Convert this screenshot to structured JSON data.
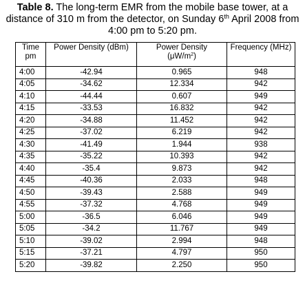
{
  "caption": {
    "label": "Table 8.",
    "line1": "The long-term EMR from the mobile base tower, at a",
    "line2_pre": "distance of 310 m from the detector, on Sunday 6",
    "line2_sup": "th",
    "line2_post": " April 2008 from",
    "line3": "4:00 pm to 5:20 pm."
  },
  "table": {
    "headers": {
      "time_l1": "Time",
      "time_l2": "pm",
      "dbm": "Power Density (dBm)",
      "uw_l1": "Power Density",
      "uw_l2_pre": "(μW/m",
      "uw_l2_sup": "2",
      "uw_l2_post": ")",
      "freq": "Frequency (MHz)"
    },
    "rows": [
      [
        "4:00",
        "-42.94",
        "0.965",
        "948"
      ],
      [
        "4:05",
        "-34.62",
        "12.334",
        "942"
      ],
      [
        "4:10",
        "-44.44",
        "0.607",
        "949"
      ],
      [
        "4:15",
        "-33.53",
        "16.832",
        "942"
      ],
      [
        "4:20",
        "-34.88",
        "11.452",
        "942"
      ],
      [
        "4:25",
        "-37.02",
        "6.219",
        "942"
      ],
      [
        "4:30",
        "-41.49",
        "1.944",
        "938"
      ],
      [
        "4:35",
        "-35.22",
        "10.393",
        "942"
      ],
      [
        "4:40",
        "-35.4",
        "9.873",
        "942"
      ],
      [
        "4:45",
        "-40.36",
        "2.033",
        "948"
      ],
      [
        "4:50",
        "-39.43",
        "2.588",
        "949"
      ],
      [
        "4:55",
        "-37.32",
        "4.768",
        "949"
      ],
      [
        "5:00",
        "-36.5",
        "6.046",
        "949"
      ],
      [
        "5:05",
        "-34.2",
        "11.767",
        "949"
      ],
      [
        "5:10",
        "-39.02",
        "2.994",
        "948"
      ],
      [
        "5:15",
        "-37.21",
        "4.797",
        "950"
      ],
      [
        "5:20",
        "-39.82",
        "2.250",
        "950"
      ]
    ]
  }
}
